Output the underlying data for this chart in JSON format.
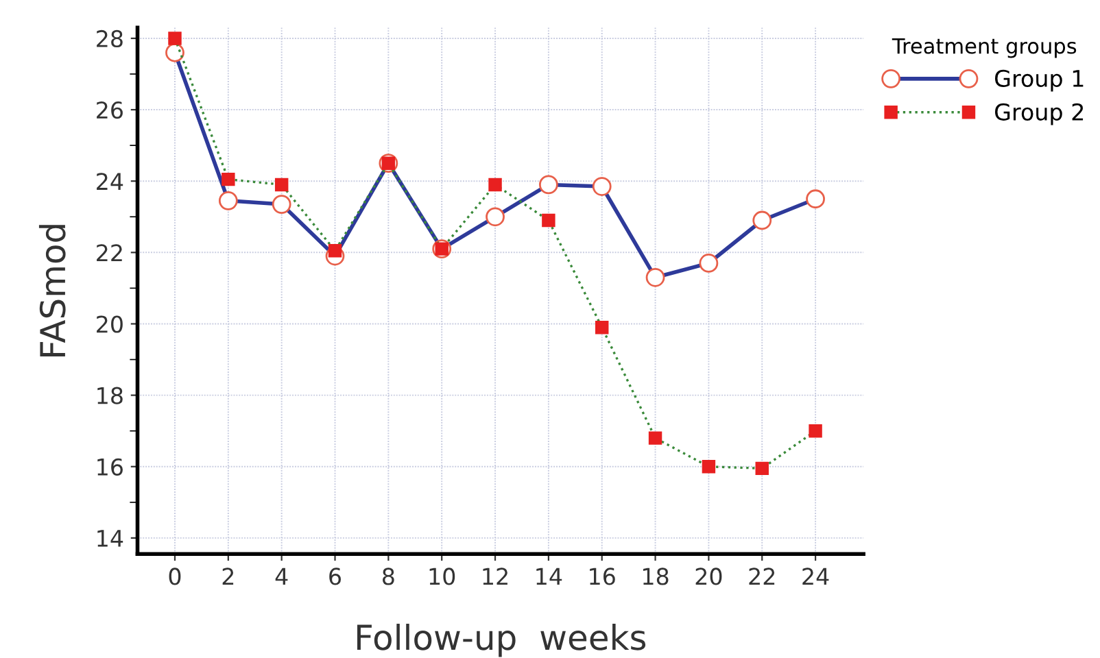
{
  "chart_data": {
    "type": "line",
    "xlabel": "Follow-up  weeks",
    "ylabel": "FASmod",
    "legend_title": "Treatment groups",
    "legend": "top right",
    "x": [
      0,
      2,
      4,
      6,
      8,
      10,
      12,
      14,
      16,
      18,
      20,
      22,
      24
    ],
    "xlim": [
      -1.4,
      25.8
    ],
    "xticks": [
      0,
      2,
      4,
      6,
      8,
      10,
      12,
      14,
      16,
      18,
      20,
      22,
      24
    ],
    "ylim": [
      13.55,
      28.3
    ],
    "yticks": [
      14,
      16,
      18,
      20,
      22,
      24,
      26,
      28
    ],
    "grid": true,
    "series": [
      {
        "name": "Group 1",
        "color": "#2e3a9a",
        "marker": "circle",
        "line_style": "solid",
        "values": [
          27.6,
          23.45,
          23.35,
          21.9,
          24.5,
          22.1,
          23.0,
          23.9,
          23.85,
          21.3,
          21.7,
          22.9,
          23.5
        ]
      },
      {
        "name": "Group 2",
        "color": "#3a8a3a",
        "marker": "square",
        "line_style": "dotted",
        "values": [
          28.0,
          24.05,
          23.9,
          22.05,
          24.5,
          22.1,
          23.9,
          22.9,
          19.9,
          16.8,
          16.0,
          15.95,
          17.0
        ]
      }
    ]
  }
}
